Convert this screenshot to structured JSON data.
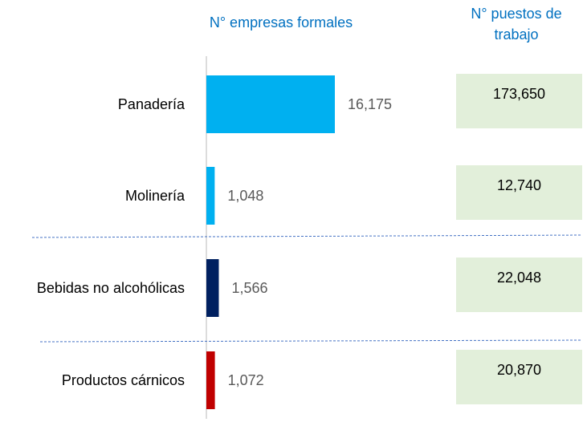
{
  "chart_data": {
    "type": "bar",
    "orientation": "horizontal",
    "categories": [
      "Panadería",
      "Molinería",
      "Bebidas no alcohólicas",
      "Productos cárnicos"
    ],
    "series": [
      {
        "name": "N° empresas formales",
        "colors": [
          "#00b0f0",
          "#00b0f0",
          "#002060",
          "#c00000"
        ],
        "values": [
          16175,
          1048,
          1566,
          1072
        ],
        "value_labels": [
          "16,175",
          "1,048",
          "1,566",
          "1,072"
        ]
      },
      {
        "name": "N° puestos de trabajo",
        "color": "#e2efda",
        "values": [
          173650,
          12740,
          22048,
          20870
        ],
        "value_labels": [
          "173,650",
          "12,740",
          "22,048",
          "20,870"
        ]
      }
    ]
  }
}
